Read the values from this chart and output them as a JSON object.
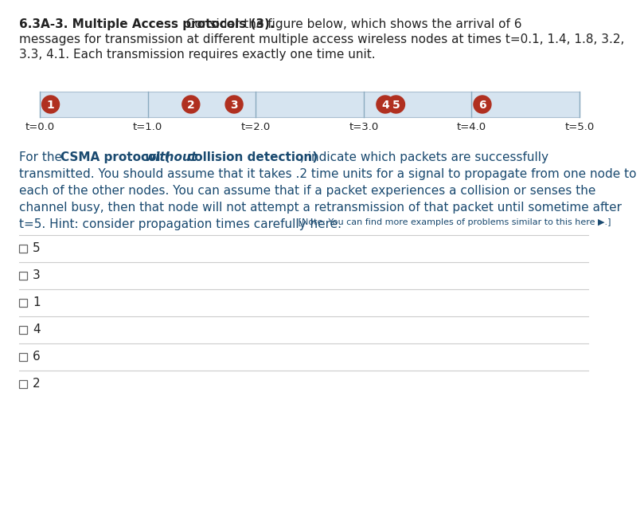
{
  "title_bold": "6.3A-3. Multiple Access protocols (3).",
  "title_normal": " Consider the figure below, which shows the arrival of 6",
  "title_line2": "messages for transmission at different multiple access wireless nodes at times t=0.1, 1.4, 1.8, 3.2,",
  "title_line3": "3.3, 4.1. Each transmission requires exactly one time unit.",
  "timeline_bg_color": "#d6e4f0",
  "timeline_border_color": "#aabfd0",
  "timeline_divider_color": "#8aaabf",
  "t_labels": [
    "t=0.0",
    "t=1.0",
    "t=2.0",
    "t=3.0",
    "t=4.0",
    "t=5.0"
  ],
  "t_positions": [
    0.0,
    1.0,
    2.0,
    3.0,
    4.0,
    5.0
  ],
  "packets": [
    {
      "label": "1",
      "time": 0.1
    },
    {
      "label": "2",
      "time": 1.4
    },
    {
      "label": "3",
      "time": 1.8
    },
    {
      "label": "4",
      "time": 3.2
    },
    {
      "label": "5",
      "time": 3.3
    },
    {
      "label": "6",
      "time": 4.1
    }
  ],
  "circle_color": "#b03020",
  "circle_text_color": "#ffffff",
  "checkbox_options": [
    "5",
    "3",
    "1",
    "4",
    "6",
    "2"
  ],
  "bg_color": "#ffffff",
  "text_color": "#1a4a70",
  "separator_color": "#cccccc",
  "black_color": "#222222"
}
